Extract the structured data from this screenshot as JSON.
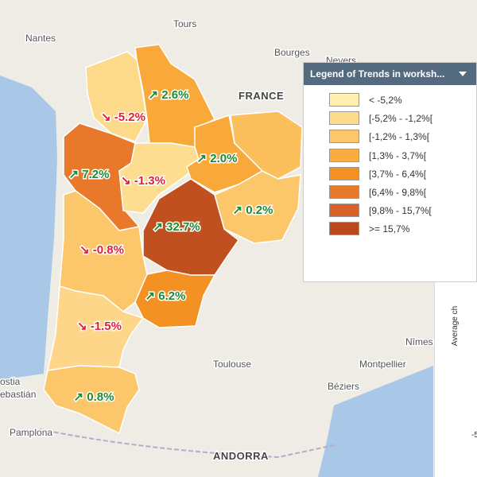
{
  "places": [
    "Nantes",
    "Tours",
    "Bourges",
    "Nevers",
    "FRANCE",
    "Toulouse",
    "Montpellier",
    "Nîmes",
    "Béziers",
    "Pamplona",
    "ANDORRA",
    "ostia",
    "ebastián"
  ],
  "regions": [
    {
      "label": "↘ -5.2%",
      "value": -5.2,
      "color": "#fdd98a"
    },
    {
      "label": "↗ 2.6%",
      "value": 2.6,
      "color": "#f8a93a"
    },
    {
      "label": "↗ 7.2%",
      "value": 7.2,
      "color": "#e8782a"
    },
    {
      "label": "↘ -1.3%",
      "value": -1.3,
      "color": "#fddd90"
    },
    {
      "label": "↗ 2.0%",
      "value": 2.0,
      "color": "#f8a93a"
    },
    {
      "label": "↗ 0.2%",
      "value": 0.2,
      "color": "#fcc66a"
    },
    {
      "label": "↗ 32.7%",
      "value": 32.7,
      "color": "#c0501f"
    },
    {
      "label": "↘ -0.8%",
      "value": -0.8,
      "color": "#fcc66a"
    },
    {
      "label": "↗ 6.2%",
      "value": 6.2,
      "color": "#f39122"
    },
    {
      "label": "↘ -1.5%",
      "value": -1.5,
      "color": "#fdd68a"
    },
    {
      "label": "↗ 0.8%",
      "value": 0.8,
      "color": "#fcc66a"
    },
    {
      "color": "#fbbf5c"
    }
  ],
  "legend": {
    "title": "Legend of Trends in worksh...",
    "items": [
      {
        "label": "< -5,2%",
        "color": "#fff0b0"
      },
      {
        "label": "[-5,2% - -1,2%[",
        "color": "#fddb8c"
      },
      {
        "label": "[-1,2% - 1,3%[",
        "color": "#fcc66a"
      },
      {
        "label": "[1,3% - 3,7%[",
        "color": "#f9ad41"
      },
      {
        "label": "[3,7% - 6,4%[",
        "color": "#f39122"
      },
      {
        "label": "[6,4% - 9,8%[",
        "color": "#e8782a"
      },
      {
        "label": "[9,8% - 15,7%[",
        "color": "#d9622a"
      },
      {
        "label": ">= 15,7%",
        "color": "#b8491c"
      }
    ]
  },
  "side_panel": {
    "axis_title": "Average ch",
    "tick": "-5"
  }
}
